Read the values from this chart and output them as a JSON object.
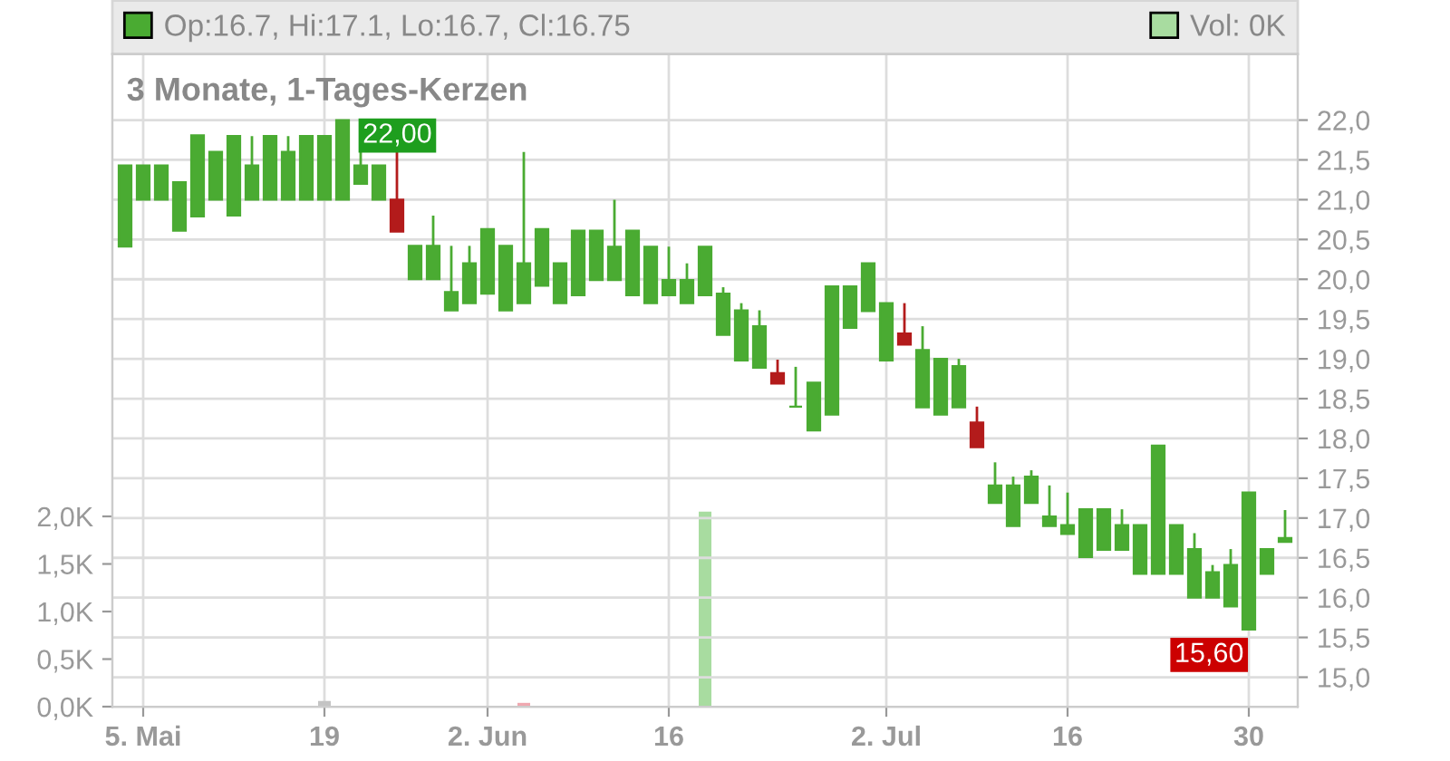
{
  "chart_data": {
    "type": "candlestick",
    "title": "3 Monate, 1-Tages-Kerzen",
    "categories": [
      null,
      "5. Mai",
      null,
      null,
      null,
      null,
      null,
      null,
      null,
      null,
      null,
      "19",
      null,
      null,
      null,
      null,
      null,
      null,
      null,
      null,
      "2. Jun",
      null,
      null,
      null,
      null,
      null,
      null,
      null,
      null,
      null,
      "16",
      null,
      null,
      null,
      null,
      null,
      null,
      null,
      null,
      null,
      null,
      null,
      "2. Jul",
      null,
      null,
      null,
      null,
      null,
      null,
      null,
      null,
      null,
      "16",
      null,
      null,
      null,
      null,
      null,
      null,
      null,
      null,
      null,
      "30",
      null,
      null
    ],
    "series": [
      {
        "name": "Op:16.7, Hi:17.1, Lo:16.7, Cl:16.75",
        "color": "#4aab32",
        "ohlc": [
          [
            20.41,
            21.43,
            20.41,
            21.43
          ],
          [
            21.0,
            21.43,
            21.0,
            21.43
          ],
          [
            21.0,
            21.43,
            21.0,
            21.43
          ],
          [
            20.61,
            21.22,
            20.61,
            21.22
          ],
          [
            20.79,
            21.81,
            20.79,
            21.81
          ],
          [
            21.0,
            21.6,
            21.0,
            21.6
          ],
          [
            20.8,
            21.8,
            20.8,
            21.8
          ],
          [
            21.0,
            21.8,
            21.0,
            21.43
          ],
          [
            21.0,
            21.8,
            21.0,
            21.8
          ],
          [
            21.0,
            21.8,
            21.0,
            21.6
          ],
          [
            21.0,
            21.8,
            21.0,
            21.8
          ],
          [
            21.0,
            21.8,
            21.0,
            21.8
          ],
          [
            21.0,
            22.0,
            21.0,
            22.0
          ],
          [
            21.2,
            21.8,
            21.2,
            21.43
          ],
          [
            21.0,
            21.43,
            21.0,
            21.43
          ],
          [
            21.0,
            21.6,
            20.6,
            20.6
          ],
          [
            20.0,
            20.42,
            20.0,
            20.42
          ],
          [
            20.0,
            20.8,
            20.0,
            20.42
          ],
          [
            19.61,
            20.42,
            19.61,
            19.84
          ],
          [
            19.7,
            20.42,
            19.7,
            20.2
          ],
          [
            19.82,
            20.63,
            19.82,
            20.63
          ],
          [
            19.61,
            20.42,
            19.61,
            20.42
          ],
          [
            19.7,
            21.6,
            19.7,
            20.2
          ],
          [
            19.92,
            20.63,
            19.92,
            20.63
          ],
          [
            19.7,
            20.2,
            19.7,
            20.2
          ],
          [
            19.8,
            20.61,
            19.8,
            20.61
          ],
          [
            19.99,
            20.61,
            19.99,
            20.61
          ],
          [
            19.99,
            21.0,
            19.99,
            20.41
          ],
          [
            19.8,
            20.61,
            19.8,
            20.61
          ],
          [
            19.7,
            20.41,
            19.7,
            20.41
          ],
          [
            19.8,
            20.41,
            19.8,
            19.99
          ],
          [
            19.7,
            20.2,
            19.7,
            19.99
          ],
          [
            19.8,
            20.41,
            19.8,
            20.41
          ],
          [
            19.3,
            19.9,
            19.3,
            19.82
          ],
          [
            18.98,
            19.7,
            18.98,
            19.61
          ],
          [
            18.89,
            19.61,
            18.89,
            19.41
          ],
          [
            18.82,
            18.99,
            18.69,
            18.69
          ],
          [
            18.4,
            18.9,
            18.4,
            18.4
          ],
          [
            18.1,
            18.7,
            18.1,
            18.7
          ],
          [
            18.3,
            19.91,
            18.3,
            19.91
          ],
          [
            19.39,
            19.91,
            19.39,
            19.91
          ],
          [
            19.6,
            20.2,
            19.6,
            20.2
          ],
          [
            18.98,
            19.7,
            18.98,
            19.7
          ],
          [
            19.32,
            19.7,
            19.18,
            19.18
          ],
          [
            18.39,
            19.41,
            18.39,
            19.11
          ],
          [
            18.3,
            19.0,
            18.3,
            19.0
          ],
          [
            18.39,
            19.0,
            18.39,
            18.91
          ],
          [
            18.2,
            18.4,
            17.89,
            17.89
          ],
          [
            17.19,
            17.7,
            17.19,
            17.41
          ],
          [
            16.9,
            17.52,
            16.9,
            17.41
          ],
          [
            17.19,
            17.6,
            17.19,
            17.52
          ],
          [
            16.9,
            17.41,
            16.9,
            17.02
          ],
          [
            16.8,
            17.32,
            16.8,
            16.91
          ],
          [
            16.51,
            17.11,
            16.51,
            17.11
          ],
          [
            16.6,
            17.11,
            16.6,
            17.11
          ],
          [
            16.6,
            17.11,
            16.6,
            16.91
          ],
          [
            16.3,
            16.91,
            16.3,
            16.91
          ],
          [
            16.3,
            17.91,
            16.3,
            17.91
          ],
          [
            16.3,
            16.91,
            16.3,
            16.91
          ],
          [
            16.0,
            16.81,
            16.0,
            16.61
          ],
          [
            16.0,
            16.41,
            16.0,
            16.32
          ],
          [
            15.89,
            16.61,
            15.89,
            16.41
          ],
          [
            15.6,
            17.32,
            15.6,
            17.32
          ],
          [
            16.3,
            16.61,
            16.3,
            16.61
          ],
          [
            16.7,
            17.1,
            16.7,
            16.75
          ]
        ],
        "colors": [
          "#4aab32",
          "#4aab32",
          "#4aab32",
          "#4aab32",
          "#4aab32",
          "#4aab32",
          "#4aab32",
          "#4aab32",
          "#4aab32",
          "#4aab32",
          "#4aab32",
          "#4aab32",
          "#4aab32",
          "#4aab32",
          "#4aab32",
          "#b31b1b",
          "#4aab32",
          "#4aab32",
          "#4aab32",
          "#4aab32",
          "#4aab32",
          "#4aab32",
          "#4aab32",
          "#4aab32",
          "#4aab32",
          "#4aab32",
          "#4aab32",
          "#4aab32",
          "#4aab32",
          "#4aab32",
          "#4aab32",
          "#4aab32",
          "#4aab32",
          "#4aab32",
          "#4aab32",
          "#4aab32",
          "#b31b1b",
          "#4aab32",
          "#4aab32",
          "#4aab32",
          "#4aab32",
          "#4aab32",
          "#4aab32",
          "#b31b1b",
          "#4aab32",
          "#4aab32",
          "#4aab32",
          "#b31b1b",
          "#4aab32",
          "#4aab32",
          "#4aab32",
          "#4aab32",
          "#4aab32",
          "#4aab32",
          "#4aab32",
          "#4aab32",
          "#4aab32",
          "#4aab32",
          "#4aab32",
          "#4aab32",
          "#4aab32",
          "#4aab32",
          "#4aab32",
          "#4aab32",
          "#4aab32"
        ]
      },
      {
        "name": "Vol: 0K",
        "type": "bar",
        "axis": "y2",
        "color": "#a8dca0",
        "values": [
          null,
          null,
          null,
          null,
          null,
          null,
          null,
          null,
          null,
          null,
          null,
          0.06,
          null,
          null,
          null,
          null,
          null,
          null,
          null,
          null,
          null,
          null,
          0.04,
          null,
          null,
          null,
          null,
          null,
          null,
          null,
          null,
          null,
          2.05,
          null,
          null,
          null,
          null,
          null,
          null,
          null,
          null,
          null,
          null,
          null,
          null,
          null,
          null,
          null,
          null,
          null,
          null,
          null,
          null,
          null,
          null,
          null,
          null,
          null,
          null,
          null,
          null,
          null,
          null,
          null,
          null
        ],
        "colors": [
          null,
          null,
          null,
          null,
          null,
          null,
          null,
          null,
          null,
          null,
          null,
          "#c4c4c4",
          null,
          null,
          null,
          null,
          null,
          null,
          null,
          null,
          null,
          null,
          "#f0a8b0",
          null,
          null,
          null,
          null,
          null,
          null,
          null,
          null,
          null,
          "#a8dca0",
          null,
          null,
          null,
          null,
          null,
          null,
          null,
          null,
          null,
          null,
          null,
          null,
          null,
          null,
          null,
          null,
          null,
          null,
          null,
          null,
          null,
          null,
          null,
          null,
          null,
          null,
          null,
          null,
          null,
          null,
          null,
          null
        ]
      }
    ],
    "ylim": [
      14.63,
      22.83
    ],
    "yticks": [
      {
        "value": 15.0,
        "label": "15,0"
      },
      {
        "value": 15.5,
        "label": "15,5"
      },
      {
        "value": 16.0,
        "label": "16,0"
      },
      {
        "value": 16.5,
        "label": "16,5"
      },
      {
        "value": 17.0,
        "label": "17,0"
      },
      {
        "value": 17.5,
        "label": "17,5"
      },
      {
        "value": 18.0,
        "label": "18,0"
      },
      {
        "value": 18.5,
        "label": "18,5"
      },
      {
        "value": 19.0,
        "label": "19,0"
      },
      {
        "value": 19.5,
        "label": "19,5"
      },
      {
        "value": 20.0,
        "label": "20,0"
      },
      {
        "value": 20.5,
        "label": "20,5"
      },
      {
        "value": 21.0,
        "label": "21,0"
      },
      {
        "value": 21.5,
        "label": "21,5"
      },
      {
        "value": 22.0,
        "label": "22,0"
      }
    ],
    "y2lim": [
      0,
      6.86
    ],
    "y2ticks": [
      {
        "value": 0,
        "label": "0,0K"
      },
      {
        "value": 0.5,
        "label": "0,5K"
      },
      {
        "value": 1.0,
        "label": "1,0K"
      },
      {
        "value": 1.5,
        "label": "1,5K"
      },
      {
        "value": 2.0,
        "label": "2,0K"
      }
    ],
    "annotations": [
      "22,00",
      "15,60"
    ],
    "grid": true,
    "legend": "top"
  }
}
